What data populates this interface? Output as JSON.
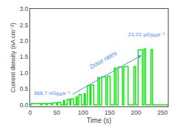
{
  "chart_data": {
    "type": "line",
    "xlabel": "Time (s)",
    "ylabel": "Current density (nA cm⁻²)",
    "x": [
      0,
      2,
      2,
      20,
      20,
      22,
      22,
      30,
      30,
      32,
      32,
      40,
      40,
      42,
      42,
      50,
      50,
      52,
      52,
      58,
      58,
      63,
      63,
      65,
      65,
      70,
      70,
      75,
      75,
      77,
      77,
      82,
      82,
      87,
      87,
      89,
      89,
      92,
      92,
      97,
      97,
      102,
      102,
      104,
      104,
      108,
      108,
      113,
      113,
      115,
      115,
      120,
      120,
      128,
      128,
      131,
      131,
      135,
      135,
      143,
      143,
      146,
      146,
      151,
      151,
      159,
      159,
      162,
      162,
      166,
      166,
      174,
      174,
      177,
      177,
      185,
      185,
      196,
      196,
      199,
      199,
      204,
      204,
      212,
      212,
      215,
      215,
      218,
      218,
      228,
      228,
      231,
      231,
      260
    ],
    "values": [
      0,
      0,
      0.04,
      0.04,
      0,
      0,
      0.04,
      0.04,
      0,
      0,
      0.04,
      0.04,
      0,
      0,
      0.06,
      0.06,
      0,
      0,
      0.08,
      0.08,
      0,
      0,
      0.14,
      0.14,
      0,
      0,
      0.17,
      0.17,
      0,
      0,
      0.19,
      0.19,
      0,
      0,
      0.25,
      0.25,
      0,
      0,
      0.32,
      0.32,
      0,
      0,
      0.35,
      0.35,
      0,
      0,
      0.6,
      0.6,
      0,
      0,
      0.62,
      0.62,
      0,
      0,
      0.85,
      0.85,
      0,
      0,
      0.88,
      0.88,
      0,
      0,
      0.9,
      0.9,
      0,
      0,
      1.15,
      1.15,
      0,
      0,
      1.18,
      1.18,
      0,
      0,
      1.2,
      1.2,
      0,
      0,
      1.2,
      1.2,
      0,
      0,
      1.72,
      1.72,
      0,
      0,
      1.75,
      1.75,
      0,
      0,
      1.73,
      1.73,
      0,
      0
    ],
    "color": "#00ee00",
    "xlim": [
      0,
      260
    ],
    "xticks": [
      0,
      50,
      100,
      150,
      200,
      250
    ],
    "ylim": [
      -0.05,
      3.0
    ],
    "yticks": [
      {
        "value": 0.0,
        "label": "0.0"
      },
      0.5,
      {
        "value": 1.0,
        "label": "1.0"
      },
      1.5,
      {
        "value": 2.0,
        "label": "2.0"
      },
      2.5,
      {
        "value": 3.0,
        "label": "3.0"
      }
    ],
    "grid": false,
    "annotations": [
      {
        "text": "Dose rates",
        "color": "#4488ff"
      },
      {
        "text": "368.7 nGyₐₓs⁻¹",
        "color": "#4488ff"
      },
      {
        "text": "21.21 μGyₐₓs⁻¹",
        "color": "#4488ff"
      }
    ]
  }
}
